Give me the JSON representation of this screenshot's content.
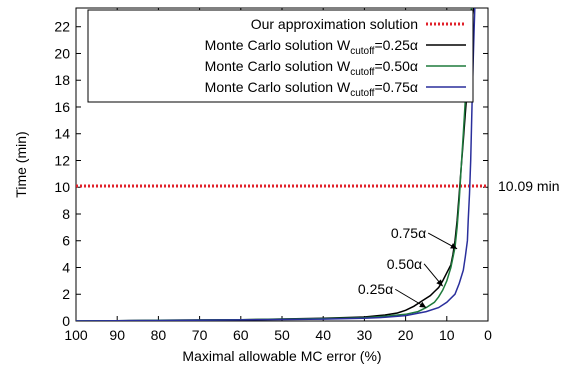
{
  "chart_data": {
    "type": "line",
    "xlabel": "Maximal allowable MC error (%)",
    "ylabel": "Time (min)",
    "x_reversed": true,
    "xlim": [
      100,
      0
    ],
    "ylim": [
      0,
      23.4
    ],
    "xticks": [
      100,
      90,
      80,
      70,
      60,
      50,
      40,
      30,
      20,
      10,
      0
    ],
    "yticks": [
      0,
      2,
      4,
      6,
      8,
      10,
      12,
      14,
      16,
      18,
      20,
      22
    ],
    "grid": false,
    "legend_placement": "top-right",
    "series": [
      {
        "name": "Our approximation solution",
        "style": "dotted",
        "color": "#e0202a",
        "x": [
          100,
          0
        ],
        "y": [
          10.09,
          10.09
        ]
      },
      {
        "name": "Monte Carlo solution W",
        "name_sub": "cutoff",
        "name_suffix": "=0.25α",
        "color": "#000000",
        "x": [
          100,
          90,
          80,
          60,
          40,
          30,
          25,
          22,
          20,
          18,
          16,
          14,
          13,
          12,
          11,
          10,
          9,
          8.5,
          8,
          7.5,
          7,
          6.5,
          6,
          5.5,
          5,
          4.5,
          4,
          3.8,
          3.5
        ],
        "y": [
          0.0,
          0.02,
          0.05,
          0.1,
          0.2,
          0.3,
          0.45,
          0.6,
          0.8,
          1.1,
          1.5,
          1.9,
          2.2,
          2.5,
          3.0,
          3.6,
          4.2,
          5.0,
          6.0,
          7.5,
          9.5,
          11.5,
          13.5,
          15.5,
          17.5,
          19.5,
          21.5,
          22.6,
          23.4
        ]
      },
      {
        "name": "Monte Carlo solution W",
        "name_sub": "cutoff",
        "name_suffix": "=0.50α",
        "color": "#1e7a3c",
        "x": [
          100,
          90,
          80,
          60,
          40,
          30,
          25,
          20,
          17,
          15,
          13,
          12,
          11,
          10,
          9,
          8,
          7.5,
          7,
          6.5,
          6,
          5.5,
          5,
          4.5,
          4.2,
          4
        ],
        "y": [
          0.0,
          0.02,
          0.05,
          0.1,
          0.18,
          0.25,
          0.35,
          0.5,
          0.7,
          1.0,
          1.4,
          1.8,
          2.3,
          3.0,
          4.0,
          5.5,
          7.0,
          9.0,
          11.5,
          14.0,
          16.5,
          19.0,
          21.5,
          22.8,
          23.4
        ]
      },
      {
        "name": "Monte Carlo solution W",
        "name_sub": "cutoff",
        "name_suffix": "=0.75α",
        "color": "#2a2f9c",
        "x": [
          100,
          90,
          80,
          60,
          40,
          30,
          25,
          20,
          15,
          12,
          10,
          8,
          7,
          6,
          5.5,
          5,
          4.8,
          4.5,
          4.2,
          4,
          3.8,
          3.6,
          3.4,
          3.2
        ],
        "y": [
          0.0,
          0.02,
          0.04,
          0.08,
          0.14,
          0.2,
          0.28,
          0.4,
          0.7,
          1.0,
          1.4,
          2.0,
          2.8,
          3.8,
          4.8,
          6.0,
          7.5,
          9.5,
          12.0,
          14.5,
          17.0,
          19.5,
          21.5,
          23.4
        ]
      }
    ],
    "annotations": [
      {
        "text": "10.09 min",
        "x": 0,
        "y": 10.09,
        "side": "right-outside"
      },
      {
        "text": "0.75α",
        "x": 15,
        "y": 6.2,
        "arrow_to": [
          7.5,
          5.4
        ]
      },
      {
        "text": "0.50α",
        "x": 16,
        "y": 3.9,
        "arrow_to": [
          11,
          2.6
        ]
      },
      {
        "text": "0.25α",
        "x": 23,
        "y": 2.0,
        "arrow_to": [
          15,
          1.0
        ]
      }
    ]
  }
}
